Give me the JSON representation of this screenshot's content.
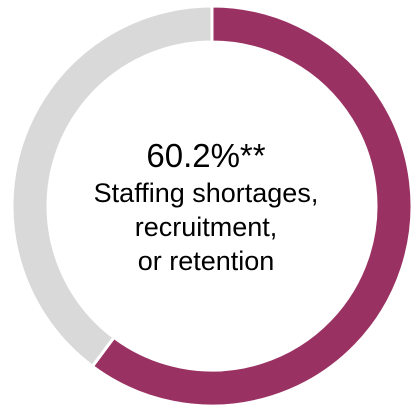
{
  "chart_data": {
    "type": "pie",
    "donut": true,
    "slices": [
      {
        "label": "Staffing shortages, recruitment, or retention",
        "value": 60.2,
        "color": "#9a3163"
      },
      {
        "label": "",
        "value": 39.8,
        "color": "#d9d9d9"
      }
    ],
    "center_text": {
      "value": "60.2%**",
      "lines": [
        "Staffing shortages,",
        "recruitment,",
        "or retention"
      ]
    }
  }
}
